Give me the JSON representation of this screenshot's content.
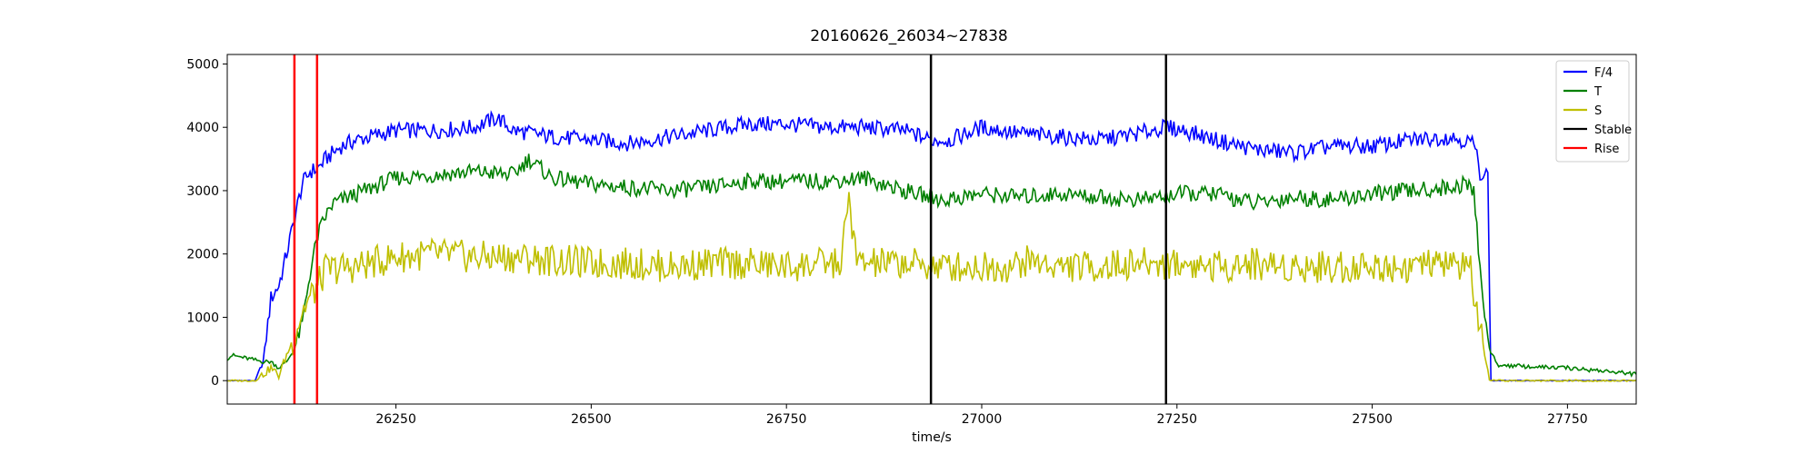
{
  "chart_data": {
    "type": "line",
    "title": "20160626_26034~27838",
    "xlabel": "time/s",
    "ylabel": "",
    "xlim": [
      26034,
      27838
    ],
    "ylim": [
      -370,
      5150
    ],
    "x_ticks": [
      26250,
      26500,
      26750,
      27000,
      27250,
      27500,
      27750
    ],
    "y_ticks": [
      0,
      1000,
      2000,
      3000,
      4000,
      5000
    ],
    "grid": false,
    "legend_position": "top-right",
    "series": [
      {
        "name": "F/4",
        "color": "#0000ff",
        "x": [
          26034,
          26070,
          26080,
          26090,
          26100,
          26110,
          26120,
          26130,
          26140,
          26150,
          26160,
          26170,
          26180,
          26200,
          26250,
          26300,
          26350,
          26380,
          26400,
          26450,
          26500,
          26550,
          26600,
          26650,
          26700,
          26750,
          26800,
          26850,
          26900,
          26935,
          26960,
          27000,
          27050,
          27100,
          27150,
          27200,
          27235,
          27260,
          27300,
          27350,
          27400,
          27450,
          27500,
          27550,
          27600,
          27630,
          27638,
          27648,
          27652,
          27838
        ],
        "y": [
          0,
          0,
          300,
          1300,
          1500,
          2000,
          2550,
          3100,
          3300,
          3350,
          3500,
          3600,
          3700,
          3800,
          3950,
          3950,
          4000,
          4150,
          3950,
          3850,
          3800,
          3750,
          3850,
          3950,
          4050,
          4050,
          4000,
          4000,
          3950,
          3800,
          3800,
          4000,
          3900,
          3850,
          3800,
          3900,
          4000,
          3950,
          3800,
          3650,
          3600,
          3700,
          3700,
          3800,
          3850,
          3750,
          3300,
          3250,
          0,
          0
        ]
      },
      {
        "name": "T",
        "color": "#008000",
        "x": [
          26034,
          26040,
          26060,
          26080,
          26090,
          26100,
          26110,
          26120,
          26130,
          26140,
          26150,
          26160,
          26170,
          26200,
          26250,
          26300,
          26350,
          26400,
          26420,
          26450,
          26500,
          26550,
          26600,
          26650,
          26700,
          26750,
          26800,
          26850,
          26900,
          26950,
          27000,
          27050,
          27100,
          27150,
          27200,
          27250,
          27300,
          27350,
          27400,
          27450,
          27500,
          27550,
          27600,
          27620,
          27630,
          27640,
          27650,
          27660,
          27700,
          27750,
          27800,
          27838
        ],
        "y": [
          350,
          400,
          350,
          300,
          300,
          200,
          300,
          500,
          900,
          1700,
          2300,
          2600,
          2800,
          2950,
          3200,
          3250,
          3300,
          3250,
          3500,
          3200,
          3100,
          3050,
          3000,
          3050,
          3150,
          3150,
          3150,
          3200,
          3000,
          2850,
          2950,
          2900,
          2950,
          2900,
          2850,
          2950,
          2950,
          2800,
          2900,
          2850,
          2950,
          3000,
          3050,
          3100,
          3000,
          1500,
          500,
          250,
          220,
          200,
          150,
          100
        ]
      },
      {
        "name": "S",
        "color": "#bfbf00",
        "x": [
          26034,
          26070,
          26080,
          26090,
          26100,
          26110,
          26120,
          26130,
          26140,
          26150,
          26160,
          26200,
          26250,
          26300,
          26350,
          26400,
          26450,
          26500,
          26550,
          26600,
          26650,
          26700,
          26750,
          26800,
          26820,
          26830,
          26840,
          26850,
          26900,
          26950,
          27000,
          27040,
          27060,
          27100,
          27150,
          27200,
          27250,
          27300,
          27350,
          27400,
          27450,
          27500,
          27550,
          27600,
          27625,
          27630,
          27638,
          27645,
          27650,
          27838
        ],
        "y": [
          0,
          0,
          100,
          200,
          80,
          400,
          700,
          1100,
          1300,
          1500,
          1750,
          1800,
          1950,
          2000,
          1950,
          1950,
          1900,
          1850,
          1850,
          1800,
          1850,
          1850,
          1800,
          1850,
          1850,
          2900,
          1850,
          1850,
          1850,
          1800,
          1800,
          1800,
          1900,
          1800,
          1800,
          1850,
          1850,
          1800,
          1850,
          1800,
          1800,
          1800,
          1800,
          1850,
          1800,
          1400,
          800,
          300,
          0,
          0
        ]
      }
    ],
    "vlines": [
      {
        "name": "Stable",
        "color": "#000000",
        "x": [
          26935,
          27236
        ]
      },
      {
        "name": "Rise",
        "color": "#ff0000",
        "x": [
          26120,
          26149
        ]
      }
    ],
    "legend": [
      {
        "label": "F/4",
        "color": "#0000ff"
      },
      {
        "label": "T",
        "color": "#008000"
      },
      {
        "label": "S",
        "color": "#bfbf00"
      },
      {
        "label": "Stable",
        "color": "#000000"
      },
      {
        "label": "Rise",
        "color": "#ff0000"
      }
    ]
  }
}
